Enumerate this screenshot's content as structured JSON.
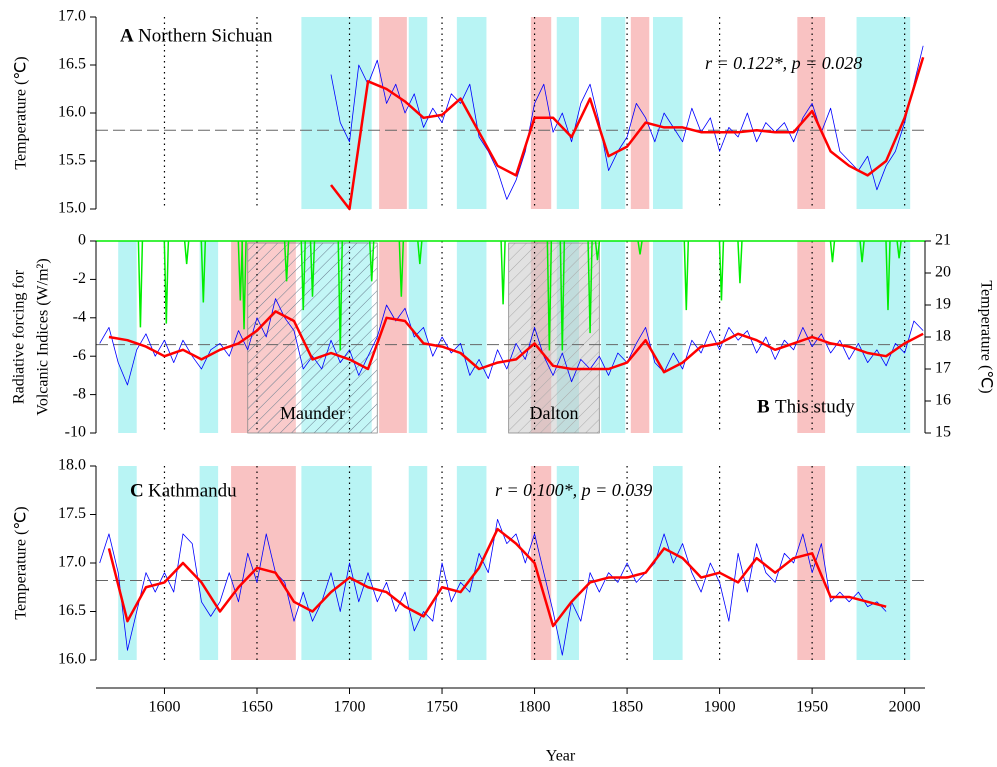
{
  "chart_data": [
    {
      "type": "line",
      "label": "A",
      "title": "Northern Sichuan",
      "annotation": "r =  0.122*, p = 0.028",
      "ylabel": [
        "Temperature (℃)"
      ],
      "xlim": [
        1563,
        2011
      ],
      "ylim": [
        15,
        17
      ],
      "yticks": [
        {
          "value": 15,
          "label": "15.0"
        },
        15.5,
        {
          "value": 16,
          "label": "16.0"
        },
        16.5,
        {
          "value": 17,
          "label": "17.0"
        }
      ],
      "mean": 15.82,
      "cold_periods": [
        [
          1674,
          1712
        ],
        [
          1732,
          1742
        ],
        [
          1758,
          1774
        ],
        [
          1812,
          1824
        ],
        [
          1836,
          1849
        ],
        [
          1864,
          1880
        ],
        [
          1974,
          2003
        ]
      ],
      "warm_periods": [
        [
          1716,
          1731
        ],
        [
          1798,
          1809
        ],
        [
          1852,
          1862
        ],
        [
          1942,
          1957
        ]
      ],
      "series": [
        {
          "color": "#0000ff",
          "width": 0.8,
          "x": [
            1690,
            1695,
            1700,
            1705,
            1710,
            1715,
            1720,
            1725,
            1730,
            1735,
            1740,
            1745,
            1750,
            1755,
            1760,
            1765,
            1770,
            1775,
            1780,
            1785,
            1790,
            1795,
            1800,
            1805,
            1810,
            1815,
            1820,
            1825,
            1830,
            1835,
            1840,
            1845,
            1850,
            1855,
            1860,
            1865,
            1870,
            1875,
            1880,
            1885,
            1890,
            1895,
            1900,
            1905,
            1910,
            1915,
            1920,
            1925,
            1930,
            1935,
            1940,
            1945,
            1950,
            1955,
            1960,
            1965,
            1970,
            1975,
            1980,
            1985,
            1990,
            1995,
            2000,
            2005,
            2010
          ],
          "values": [
            16.4,
            15.9,
            15.7,
            16.5,
            16.3,
            16.55,
            16.1,
            16.3,
            16.0,
            16.2,
            15.85,
            16.05,
            15.9,
            16.2,
            16.1,
            16.3,
            15.75,
            15.6,
            15.4,
            15.1,
            15.3,
            15.6,
            16.1,
            16.3,
            15.8,
            16.0,
            15.7,
            16.1,
            16.3,
            15.9,
            15.4,
            15.6,
            15.75,
            16.1,
            15.95,
            15.7,
            16.0,
            15.85,
            15.7,
            16.05,
            15.8,
            15.95,
            15.6,
            15.85,
            15.75,
            16.0,
            15.7,
            15.9,
            15.8,
            15.9,
            15.7,
            15.95,
            16.1,
            15.8,
            16.05,
            15.6,
            15.5,
            15.4,
            15.55,
            15.2,
            15.45,
            15.6,
            15.9,
            16.3,
            16.7
          ]
        },
        {
          "color": "#ff0000",
          "width": 2.5,
          "x": [
            1690,
            1700,
            1710,
            1720,
            1730,
            1740,
            1750,
            1760,
            1770,
            1780,
            1790,
            1800,
            1810,
            1820,
            1830,
            1840,
            1850,
            1860,
            1870,
            1880,
            1890,
            1900,
            1910,
            1920,
            1930,
            1940,
            1950,
            1960,
            1970,
            1980,
            1990,
            2000,
            2010
          ],
          "values": [
            15.25,
            15.0,
            16.33,
            16.25,
            16.12,
            15.95,
            15.98,
            16.15,
            15.8,
            15.45,
            15.35,
            15.95,
            15.95,
            15.75,
            16.15,
            15.55,
            15.65,
            15.9,
            15.85,
            15.85,
            15.8,
            15.8,
            15.8,
            15.82,
            15.8,
            15.8,
            16.02,
            15.6,
            15.45,
            15.35,
            15.5,
            15.95,
            16.58
          ]
        }
      ]
    },
    {
      "type": "line",
      "label": "B",
      "title": "This study",
      "ylabel": [
        "Radiative forcing for",
        "Volcanic Indices (W/m²)"
      ],
      "y2label": "Temperature (℃)",
      "xlim": [
        1563,
        2011
      ],
      "ylim": [
        -10,
        0
      ],
      "yticks": [
        0,
        -2,
        -4,
        -6,
        -8,
        -10
      ],
      "y2lim": [
        15,
        21
      ],
      "y2ticks": [
        15,
        16,
        17,
        18,
        19,
        20,
        21
      ],
      "mean": -5.4,
      "cold_periods": [
        [
          1575,
          1585
        ],
        [
          1619,
          1629
        ],
        [
          1674,
          1712
        ],
        [
          1732,
          1742
        ],
        [
          1758,
          1774
        ],
        [
          1812,
          1824
        ],
        [
          1836,
          1849
        ],
        [
          1864,
          1880
        ],
        [
          1974,
          2003
        ]
      ],
      "warm_periods": [
        [
          1636,
          1671
        ],
        [
          1716,
          1731
        ],
        [
          1798,
          1809
        ],
        [
          1852,
          1862
        ],
        [
          1942,
          1957
        ]
      ],
      "periods": [
        {
          "label": "Maunder",
          "start": 1645,
          "end": 1715
        },
        {
          "label": "Dalton",
          "start": 1786,
          "end": 1835
        }
      ],
      "series": [
        {
          "color": "#00ee00",
          "width": 1.5,
          "style": "spikes",
          "x": [
            1587,
            1601,
            1612,
            1621,
            1641,
            1643,
            1666,
            1675,
            1680,
            1695,
            1712,
            1728,
            1738,
            1783,
            1808,
            1815,
            1830,
            1834,
            1857,
            1882,
            1901,
            1911,
            1961,
            1977,
            1991,
            1997
          ],
          "values": [
            -4.5,
            -4.3,
            -1.2,
            -3.2,
            -3.1,
            -4.6,
            -2.1,
            -3.6,
            -2.9,
            -5.7,
            -2.1,
            -2.9,
            -1.2,
            -3.3,
            -5.7,
            -5.7,
            -4.8,
            -1.0,
            -0.7,
            -3.6,
            -3.1,
            -2.2,
            -1.1,
            -1.1,
            -3.6,
            -0.9
          ]
        },
        {
          "color": "#0000ff",
          "width": 0.8,
          "axis": "y2",
          "x": [
            1565,
            1570,
            1575,
            1580,
            1585,
            1590,
            1595,
            1600,
            1605,
            1610,
            1615,
            1620,
            1625,
            1630,
            1635,
            1640,
            1645,
            1650,
            1655,
            1660,
            1665,
            1670,
            1675,
            1680,
            1685,
            1690,
            1695,
            1700,
            1705,
            1710,
            1715,
            1720,
            1725,
            1730,
            1735,
            1740,
            1745,
            1750,
            1755,
            1760,
            1765,
            1770,
            1775,
            1780,
            1785,
            1790,
            1795,
            1800,
            1805,
            1810,
            1815,
            1820,
            1825,
            1830,
            1835,
            1840,
            1845,
            1850,
            1855,
            1860,
            1865,
            1870,
            1875,
            1880,
            1885,
            1890,
            1895,
            1900,
            1905,
            1910,
            1915,
            1920,
            1925,
            1930,
            1935,
            1940,
            1945,
            1950,
            1955,
            1960,
            1965,
            1970,
            1975,
            1980,
            1985,
            1990,
            1995,
            2000,
            2005,
            2010
          ],
          "values": [
            17.8,
            18.3,
            17.2,
            16.5,
            17.6,
            18.1,
            17.4,
            17.9,
            17.2,
            17.9,
            17.4,
            17.0,
            17.6,
            17.8,
            17.4,
            18.2,
            17.6,
            18.6,
            18.0,
            19.2,
            18.6,
            18.2,
            17.0,
            17.4,
            17.0,
            17.9,
            17.2,
            17.6,
            16.8,
            17.4,
            18.0,
            19.0,
            18.5,
            18.9,
            18.0,
            18.3,
            17.4,
            18.0,
            17.5,
            17.8,
            16.8,
            17.3,
            16.7,
            17.6,
            17.0,
            17.8,
            17.3,
            18.3,
            17.4,
            16.8,
            17.5,
            16.6,
            17.3,
            17.0,
            17.4,
            16.8,
            17.5,
            17.2,
            17.8,
            18.3,
            17.2,
            16.9,
            17.5,
            17.0,
            17.9,
            17.5,
            18.2,
            17.6,
            18.3,
            17.9,
            18.2,
            17.5,
            18.0,
            17.3,
            17.9,
            17.6,
            18.3,
            17.7,
            18.1,
            17.5,
            17.9,
            17.3,
            17.8,
            17.2,
            17.6,
            17.1,
            17.8,
            17.5,
            18.5,
            18.2
          ]
        },
        {
          "color": "#ff0000",
          "width": 2.5,
          "axis": "y2",
          "x": [
            1570,
            1580,
            1590,
            1600,
            1610,
            1620,
            1630,
            1640,
            1650,
            1660,
            1670,
            1680,
            1690,
            1700,
            1710,
            1720,
            1730,
            1740,
            1750,
            1760,
            1770,
            1780,
            1790,
            1800,
            1810,
            1820,
            1830,
            1840,
            1850,
            1860,
            1870,
            1880,
            1890,
            1900,
            1910,
            1920,
            1930,
            1940,
            1950,
            1960,
            1970,
            1980,
            1990,
            2000,
            2010
          ],
          "values": [
            18.0,
            17.9,
            17.7,
            17.4,
            17.6,
            17.3,
            17.6,
            17.8,
            18.2,
            18.8,
            18.5,
            17.3,
            17.5,
            17.3,
            17.0,
            18.6,
            18.5,
            17.8,
            17.7,
            17.5,
            17.0,
            17.2,
            17.3,
            17.8,
            17.1,
            17.0,
            17.0,
            17.0,
            17.2,
            17.9,
            16.9,
            17.2,
            17.7,
            17.8,
            18.1,
            17.9,
            17.6,
            17.8,
            18.0,
            17.8,
            17.7,
            17.5,
            17.4,
            17.8,
            18.1
          ]
        }
      ]
    },
    {
      "type": "line",
      "label": "C",
      "title": "Kathmandu",
      "annotation": "r =  0.100*, p = 0.039",
      "ylabel": [
        "Temperature (℃)"
      ],
      "xlabel": "Year",
      "xlim": [
        1563,
        2011
      ],
      "xticks": [
        1600,
        1650,
        1700,
        1750,
        1800,
        1850,
        1900,
        1950,
        2000
      ],
      "ylim": [
        16,
        18
      ],
      "yticks": [
        {
          "value": 16,
          "label": "16.0"
        },
        16.5,
        {
          "value": 17,
          "label": "17.0"
        },
        17.5,
        {
          "value": 18,
          "label": "18.0"
        }
      ],
      "mean": 16.82,
      "cold_periods": [
        [
          1575,
          1585
        ],
        [
          1619,
          1629
        ],
        [
          1674,
          1712
        ],
        [
          1732,
          1742
        ],
        [
          1758,
          1774
        ],
        [
          1812,
          1824
        ],
        [
          1864,
          1880
        ],
        [
          1974,
          2003
        ]
      ],
      "warm_periods": [
        [
          1636,
          1671
        ],
        [
          1798,
          1809
        ],
        [
          1942,
          1957
        ]
      ],
      "series": [
        {
          "color": "#0000ff",
          "width": 0.8,
          "x": [
            1565,
            1570,
            1575,
            1580,
            1585,
            1590,
            1595,
            1600,
            1605,
            1610,
            1615,
            1620,
            1625,
            1630,
            1635,
            1640,
            1645,
            1650,
            1655,
            1660,
            1665,
            1670,
            1675,
            1680,
            1685,
            1690,
            1695,
            1700,
            1705,
            1710,
            1715,
            1720,
            1725,
            1730,
            1735,
            1740,
            1745,
            1750,
            1755,
            1760,
            1765,
            1770,
            1775,
            1780,
            1785,
            1790,
            1795,
            1800,
            1805,
            1810,
            1815,
            1820,
            1825,
            1830,
            1835,
            1840,
            1845,
            1850,
            1855,
            1860,
            1865,
            1870,
            1875,
            1880,
            1885,
            1890,
            1895,
            1900,
            1905,
            1910,
            1915,
            1920,
            1925,
            1930,
            1935,
            1940,
            1945,
            1950,
            1955,
            1960,
            1965,
            1970,
            1975,
            1980,
            1985,
            1990
          ],
          "values": [
            17.0,
            17.3,
            16.9,
            16.1,
            16.5,
            16.9,
            16.7,
            16.9,
            16.7,
            17.3,
            17.2,
            16.6,
            16.45,
            16.6,
            16.9,
            16.6,
            17.1,
            16.8,
            17.3,
            16.9,
            16.8,
            16.4,
            16.7,
            16.4,
            16.6,
            16.9,
            16.5,
            17.0,
            16.6,
            16.9,
            16.6,
            16.8,
            16.5,
            16.7,
            16.3,
            16.5,
            16.4,
            17.0,
            16.6,
            16.8,
            16.7,
            17.1,
            16.9,
            17.45,
            17.2,
            17.3,
            17.0,
            17.3,
            16.9,
            16.5,
            16.05,
            16.6,
            16.4,
            16.9,
            16.7,
            16.9,
            16.8,
            17.0,
            16.8,
            16.9,
            17.0,
            17.3,
            17.0,
            17.2,
            16.9,
            16.7,
            17.0,
            16.8,
            16.4,
            17.1,
            16.7,
            17.2,
            16.9,
            16.8,
            17.1,
            17.0,
            17.3,
            16.9,
            17.2,
            16.6,
            16.7,
            16.6,
            16.7,
            16.55,
            16.6,
            16.5
          ]
        },
        {
          "color": "#ff0000",
          "width": 2.5,
          "x": [
            1570,
            1580,
            1590,
            1600,
            1610,
            1620,
            1630,
            1640,
            1650,
            1660,
            1670,
            1680,
            1690,
            1700,
            1710,
            1720,
            1730,
            1740,
            1750,
            1760,
            1770,
            1780,
            1790,
            1800,
            1810,
            1820,
            1830,
            1840,
            1850,
            1860,
            1870,
            1880,
            1890,
            1900,
            1910,
            1920,
            1930,
            1940,
            1950,
            1960,
            1970,
            1980,
            1990
          ],
          "values": [
            17.15,
            16.4,
            16.75,
            16.8,
            17.0,
            16.8,
            16.5,
            16.75,
            16.95,
            16.9,
            16.6,
            16.5,
            16.7,
            16.85,
            16.75,
            16.7,
            16.55,
            16.45,
            16.75,
            16.7,
            16.95,
            17.35,
            17.2,
            17.0,
            16.35,
            16.6,
            16.8,
            16.85,
            16.85,
            16.9,
            17.15,
            17.05,
            16.85,
            16.9,
            16.8,
            17.05,
            16.9,
            17.05,
            17.1,
            16.65,
            16.65,
            16.6,
            16.55
          ]
        }
      ]
    }
  ]
}
